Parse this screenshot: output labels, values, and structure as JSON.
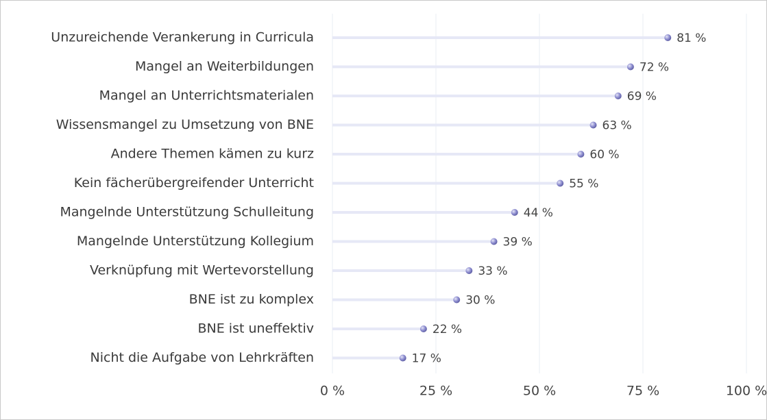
{
  "chart_data": {
    "type": "lollipop",
    "categories": [
      "Unzureichende Verankerung in Curricula",
      "Mangel an Weiterbildungen",
      "Mangel an Unterrichtsmaterialen",
      "Wissensmangel zu Umsetzung von BNE",
      "Andere Themen kämen zu kurz",
      "Kein fächerübergreifender Unterricht",
      "Mangelnde Unterstützung Schulleitung",
      "Mangelnde Unterstützung Kollegium",
      "Verknüpfung mit Wertevorstellung",
      "BNE ist zu komplex",
      "BNE ist uneffektiv",
      "Nicht die Aufgabe von Lehrkräften"
    ],
    "values": [
      81,
      72,
      69,
      63,
      60,
      55,
      44,
      39,
      33,
      30,
      22,
      17
    ],
    "value_labels": [
      "81 %",
      "72 %",
      "69 %",
      "63 %",
      "60 %",
      "55 %",
      "44 %",
      "39 %",
      "33 %",
      "30 %",
      "22 %",
      "17 %"
    ],
    "color": "#8e8ed0",
    "xlim": [
      0,
      100
    ],
    "xticks": [
      {
        "value": 0,
        "label": "0 %"
      },
      {
        "value": 25,
        "label": "25 %"
      },
      {
        "value": 50,
        "label": "50 %"
      },
      {
        "value": 75,
        "label": "75 %"
      },
      {
        "value": 100,
        "label": "100 %"
      }
    ],
    "grid": true
  }
}
